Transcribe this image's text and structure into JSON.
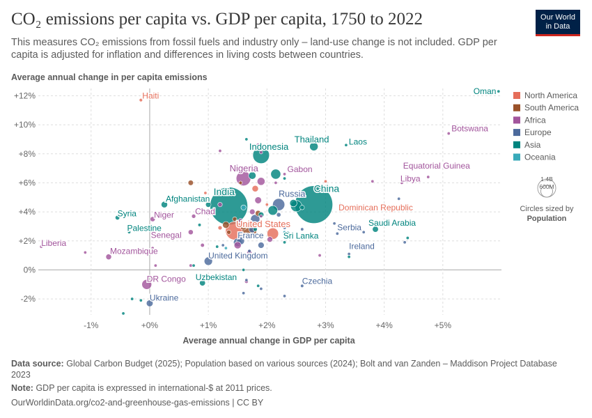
{
  "title": "CO₂ emissions per capita vs. GDP per capita, 1750 to 2022",
  "subtitle": "This measures CO₂ emissions from fossil fuels and industry only – land-use change is not included. GDP per capita is adjusted for inflation and differences in living costs between countries.",
  "logo": {
    "line1": "Our World",
    "line2": "in Data",
    "bg": "#002147",
    "accent": "#ce261e"
  },
  "footer": {
    "source_label": "Data source:",
    "source_text": "Global Carbon Budget (2025); Population based on various sources (2024); Bolt and van Zanden – Maddison Project Database 2023",
    "note_label": "Note:",
    "note_text": "GDP per capita is expressed in international-$ at 2011 prices.",
    "url": "OurWorldinData.org/co2-and-greenhouse-gas-emissions | CC BY"
  },
  "chart_data": {
    "type": "scatter",
    "xlabel": "Average annual change in GDP per capita",
    "ylabel": "Average annual change in per capita emissions",
    "xlim": [
      -1.9,
      6.0
    ],
    "ylim": [
      -3.1,
      12.5
    ],
    "x_ticks": [
      -1,
      0,
      1,
      2,
      3,
      4,
      5
    ],
    "x_tick_labels": [
      "-1%",
      "+0%",
      "+1%",
      "+2%",
      "+3%",
      "+4%",
      "+5%"
    ],
    "y_ticks": [
      -2,
      0,
      2,
      4,
      6,
      8,
      10,
      12
    ],
    "y_tick_labels": [
      "-2%",
      "0%",
      "+2%",
      "+4%",
      "+6%",
      "+8%",
      "+10%",
      "+12%"
    ],
    "grid": true,
    "legend_position": "right",
    "legend": [
      {
        "name": "North America",
        "color": "#e56e5a"
      },
      {
        "name": "South America",
        "color": "#9a5129"
      },
      {
        "name": "Africa",
        "color": "#a2559c"
      },
      {
        "name": "Europe",
        "color": "#4c6a9c"
      },
      {
        "name": "Asia",
        "color": "#00847e"
      },
      {
        "name": "Oceania",
        "color": "#38aaba"
      }
    ],
    "size_legend": {
      "large_label": "1.4B",
      "small_label": "600M",
      "caption": "Circles sized by",
      "variable": "Population"
    },
    "points": [
      {
        "name": "China",
        "x": 2.8,
        "y": 4.5,
        "region": "Asia",
        "pop": 1400,
        "label": true
      },
      {
        "name": "India",
        "x": 1.35,
        "y": 4.4,
        "region": "Asia",
        "pop": 1400,
        "label": true
      },
      {
        "name": "Indonesia",
        "x": 1.9,
        "y": 7.9,
        "region": "Asia",
        "pop": 270,
        "label": true
      },
      {
        "name": "Nigeria",
        "x": 1.6,
        "y": 6.3,
        "region": "Africa",
        "pop": 210,
        "label": true
      },
      {
        "name": "United States",
        "x": 1.45,
        "y": 2.7,
        "region": "North America",
        "pop": 330,
        "label": true
      },
      {
        "name": "Russia",
        "x": 2.2,
        "y": 4.5,
        "region": "Europe",
        "pop": 145,
        "label": true
      },
      {
        "name": "Thailand",
        "x": 2.8,
        "y": 8.5,
        "region": "Asia",
        "pop": 70,
        "label": true
      },
      {
        "name": "Laos",
        "x": 3.35,
        "y": 8.6,
        "region": "Asia",
        "pop": 7,
        "label": true
      },
      {
        "name": "Oman",
        "x": 5.95,
        "y": 12.3,
        "region": "Asia",
        "pop": 5,
        "label": true
      },
      {
        "name": "Botswana",
        "x": 5.1,
        "y": 9.4,
        "region": "Africa",
        "pop": 2.5,
        "label": true
      },
      {
        "name": "Haiti",
        "x": -0.15,
        "y": 11.7,
        "region": "North America",
        "pop": 11,
        "label": true
      },
      {
        "name": "Gabon",
        "x": 2.3,
        "y": 6.6,
        "region": "Africa",
        "pop": 2.3,
        "label": true
      },
      {
        "name": "Libya",
        "x": 4.3,
        "y": 6.0,
        "region": "Africa",
        "pop": 7,
        "label": true
      },
      {
        "name": "Equatorial Guinea",
        "x": 4.75,
        "y": 6.4,
        "region": "Africa",
        "pop": 1.5,
        "label": true
      },
      {
        "name": "Afghanistan",
        "x": 0.25,
        "y": 4.5,
        "region": "Asia",
        "pop": 40,
        "label": true
      },
      {
        "name": "Syria",
        "x": -0.55,
        "y": 3.6,
        "region": "Asia",
        "pop": 20,
        "label": true
      },
      {
        "name": "Niger",
        "x": 0.05,
        "y": 3.5,
        "region": "Africa",
        "pop": 25,
        "label": true
      },
      {
        "name": "Chad",
        "x": 0.75,
        "y": 3.7,
        "region": "Africa",
        "pop": 17,
        "label": true
      },
      {
        "name": "Palestine",
        "x": -0.35,
        "y": 2.6,
        "region": "Asia",
        "pop": 5,
        "label": true
      },
      {
        "name": "Senegal",
        "x": 0.4,
        "y": 2.4,
        "region": "Africa",
        "pop": 17,
        "label": true
      },
      {
        "name": "Liberia",
        "x": -1.85,
        "y": 1.6,
        "region": "Africa",
        "pop": 5,
        "label": true
      },
      {
        "name": "Mozambique",
        "x": -0.7,
        "y": 0.9,
        "region": "Africa",
        "pop": 32,
        "label": true
      },
      {
        "name": "United Kingdom",
        "x": 1.0,
        "y": 0.6,
        "region": "Europe",
        "pop": 67,
        "label": true
      },
      {
        "name": "France",
        "x": 1.5,
        "y": 1.9,
        "region": "Europe",
        "pop": 67,
        "label": true
      },
      {
        "name": "Dominican Republic",
        "x": 3.4,
        "y": 4.2,
        "region": "North America",
        "pop": 11,
        "label": true
      },
      {
        "name": "Serbia",
        "x": 3.2,
        "y": 2.5,
        "region": "Europe",
        "pop": 7,
        "label": true
      },
      {
        "name": "Saudi Arabia",
        "x": 3.85,
        "y": 2.8,
        "region": "Asia",
        "pop": 35,
        "label": true
      },
      {
        "name": "Sri Lanka",
        "x": 2.35,
        "y": 2.5,
        "region": "Asia",
        "pop": 22,
        "label": true
      },
      {
        "name": "Ireland",
        "x": 3.4,
        "y": 1.1,
        "region": "Europe",
        "pop": 5,
        "label": true
      },
      {
        "name": "DR Congo",
        "x": -0.05,
        "y": -1.0,
        "region": "Africa",
        "pop": 95,
        "label": true
      },
      {
        "name": "Uzbekistan",
        "x": 0.9,
        "y": -0.9,
        "region": "Asia",
        "pop": 34,
        "label": true
      },
      {
        "name": "Czechia",
        "x": 2.6,
        "y": -1.1,
        "region": "Europe",
        "pop": 10,
        "label": true
      },
      {
        "name": "Ukraine",
        "x": 0.0,
        "y": -2.3,
        "region": "Europe",
        "pop": 44,
        "label": true
      },
      {
        "x": 1.7,
        "y": 2.7,
        "region": "South America",
        "pop": 210
      },
      {
        "x": 1.3,
        "y": 3.1,
        "region": "South America",
        "pop": 45
      },
      {
        "x": 1.6,
        "y": 3.0,
        "region": "South America",
        "pop": 50
      },
      {
        "x": 1.85,
        "y": 3.9,
        "region": "South America",
        "pop": 33
      },
      {
        "x": 1.45,
        "y": 3.5,
        "region": "South America",
        "pop": 19
      },
      {
        "x": 0.7,
        "y": 6.0,
        "region": "South America",
        "pop": 28
      },
      {
        "x": 1.55,
        "y": 6.0,
        "region": "South America",
        "pop": 12
      },
      {
        "x": 1.35,
        "y": 2.6,
        "region": "South America",
        "pop": 18
      },
      {
        "x": 2.1,
        "y": 2.5,
        "region": "North America",
        "pop": 128
      },
      {
        "x": 1.8,
        "y": 5.6,
        "region": "North America",
        "pop": 40
      },
      {
        "x": 2.0,
        "y": 4.5,
        "region": "North America",
        "pop": 5
      },
      {
        "x": 1.2,
        "y": 2.9,
        "region": "North America",
        "pop": 17
      },
      {
        "x": 1.85,
        "y": 2.3,
        "region": "North America",
        "pop": 10
      },
      {
        "x": 3.0,
        "y": 6.1,
        "region": "North America",
        "pop": 4
      },
      {
        "x": 0.95,
        "y": 5.3,
        "region": "North America",
        "pop": 3
      },
      {
        "x": 1.9,
        "y": 6.1,
        "region": "Africa",
        "pop": 60
      },
      {
        "x": 1.85,
        "y": 4.8,
        "region": "Africa",
        "pop": 45
      },
      {
        "x": 1.85,
        "y": 8.6,
        "region": "Africa",
        "pop": 15
      },
      {
        "x": 1.9,
        "y": 8.1,
        "region": "Africa",
        "pop": 10
      },
      {
        "x": 1.2,
        "y": 8.2,
        "region": "Africa",
        "pop": 6
      },
      {
        "x": 2.15,
        "y": 6.0,
        "region": "Africa",
        "pop": 5
      },
      {
        "x": 2.05,
        "y": 2.1,
        "region": "Africa",
        "pop": 30
      },
      {
        "x": 1.5,
        "y": 1.7,
        "region": "Africa",
        "pop": 50
      },
      {
        "x": 0.9,
        "y": 1.7,
        "region": "Africa",
        "pop": 15
      },
      {
        "x": 1.7,
        "y": 1.2,
        "region": "Africa",
        "pop": 25
      },
      {
        "x": 0.7,
        "y": 2.6,
        "region": "Africa",
        "pop": 25
      },
      {
        "x": -1.1,
        "y": 1.2,
        "region": "Africa",
        "pop": 3
      },
      {
        "x": 0.05,
        "y": 1.5,
        "region": "Africa",
        "pop": 8
      },
      {
        "x": 0.7,
        "y": 0.3,
        "region": "Africa",
        "pop": 10
      },
      {
        "x": 1.2,
        "y": 4.5,
        "region": "Africa",
        "pop": 20
      },
      {
        "x": 1.75,
        "y": 4.0,
        "region": "Africa",
        "pop": 30
      },
      {
        "x": 2.9,
        "y": 1.0,
        "region": "Africa",
        "pop": 3
      },
      {
        "x": 3.8,
        "y": 6.1,
        "region": "Africa",
        "pop": 2
      },
      {
        "x": 1.65,
        "y": -0.8,
        "region": "Africa",
        "pop": 13
      },
      {
        "x": 0.1,
        "y": 0.3,
        "region": "Africa",
        "pop": 4
      },
      {
        "x": 1.9,
        "y": 3.7,
        "region": "Africa",
        "pop": 9
      },
      {
        "x": 1.55,
        "y": 3.4,
        "region": "Africa",
        "pop": 18
      },
      {
        "x": 1.8,
        "y": 3.5,
        "region": "Europe",
        "pop": 83
      },
      {
        "x": 1.55,
        "y": 2.0,
        "region": "Europe",
        "pop": 59
      },
      {
        "x": 1.75,
        "y": 2.8,
        "region": "Europe",
        "pop": 47
      },
      {
        "x": 1.9,
        "y": 1.7,
        "region": "Europe",
        "pop": 38
      },
      {
        "x": 2.2,
        "y": 3.8,
        "region": "Europe",
        "pop": 19
      },
      {
        "x": 2.3,
        "y": 2.9,
        "region": "Europe",
        "pop": 10
      },
      {
        "x": 1.25,
        "y": 1.7,
        "region": "Europe",
        "pop": 9
      },
      {
        "x": 2.6,
        "y": 2.8,
        "region": "Europe",
        "pop": 10
      },
      {
        "x": 3.3,
        "y": 2.9,
        "region": "Europe",
        "pop": 7
      },
      {
        "x": 3.15,
        "y": 3.2,
        "region": "Europe",
        "pop": 6
      },
      {
        "x": 3.65,
        "y": 2.6,
        "region": "Europe",
        "pop": 3
      },
      {
        "x": 4.35,
        "y": 1.9,
        "region": "Europe",
        "pop": 2
      },
      {
        "x": 1.7,
        "y": 1.3,
        "region": "Europe",
        "pop": 11
      },
      {
        "x": 1.6,
        "y": -1.6,
        "region": "Europe",
        "pop": 9
      },
      {
        "x": 2.3,
        "y": -1.8,
        "region": "Europe",
        "pop": 5
      },
      {
        "x": 1.65,
        "y": -0.7,
        "region": "Europe",
        "pop": 4
      },
      {
        "x": 1.9,
        "y": -1.3,
        "region": "Europe",
        "pop": 3
      },
      {
        "x": 4.25,
        "y": 4.9,
        "region": "Europe",
        "pop": 2
      },
      {
        "x": 2.5,
        "y": 4.4,
        "region": "Asia",
        "pop": 125
      },
      {
        "x": 2.45,
        "y": 4.6,
        "region": "Asia",
        "pop": 52
      },
      {
        "x": 2.15,
        "y": 6.6,
        "region": "Asia",
        "pop": 98
      },
      {
        "x": 2.1,
        "y": 4.1,
        "region": "Asia",
        "pop": 90
      },
      {
        "x": 1.75,
        "y": 6.5,
        "region": "Asia",
        "pop": 54
      },
      {
        "x": 1.9,
        "y": 3.8,
        "region": "Asia",
        "pop": 30
      },
      {
        "x": 1.0,
        "y": 4.5,
        "region": "Asia",
        "pop": 29
      },
      {
        "x": 0.85,
        "y": 3.1,
        "region": "Asia",
        "pop": 10
      },
      {
        "x": 1.8,
        "y": 2.8,
        "region": "Asia",
        "pop": 17
      },
      {
        "x": 2.6,
        "y": 4.3,
        "region": "Asia",
        "pop": 20
      },
      {
        "x": 1.65,
        "y": 9.0,
        "region": "Asia",
        "pop": 6
      },
      {
        "x": 2.3,
        "y": 6.3,
        "region": "Asia",
        "pop": 5
      },
      {
        "x": 3.25,
        "y": 4.5,
        "region": "Asia",
        "pop": 3
      },
      {
        "x": 2.3,
        "y": 1.9,
        "region": "Asia",
        "pop": 8
      },
      {
        "x": 4.4,
        "y": 2.2,
        "region": "Asia",
        "pop": 3
      },
      {
        "x": 3.4,
        "y": 0.9,
        "region": "Asia",
        "pop": 2
      },
      {
        "x": 1.85,
        "y": -1.1,
        "region": "Asia",
        "pop": 6
      },
      {
        "x": -0.3,
        "y": -2.0,
        "region": "Asia",
        "pop": 4
      },
      {
        "x": -0.15,
        "y": -2.1,
        "region": "Asia",
        "pop": 3
      },
      {
        "x": -0.45,
        "y": -3.0,
        "region": "Asia",
        "pop": 3
      },
      {
        "x": 0.75,
        "y": 0.3,
        "region": "Asia",
        "pop": 3
      },
      {
        "x": 1.6,
        "y": 0.0,
        "region": "Asia",
        "pop": 2
      },
      {
        "x": 1.15,
        "y": 1.6,
        "region": "Asia",
        "pop": 5
      },
      {
        "x": 1.6,
        "y": 4.3,
        "region": "Oceania",
        "pop": 26
      },
      {
        "x": 2.3,
        "y": 2.6,
        "region": "Oceania",
        "pop": 5
      },
      {
        "x": 1.3,
        "y": 1.5,
        "region": "Oceania",
        "pop": 9
      }
    ]
  }
}
